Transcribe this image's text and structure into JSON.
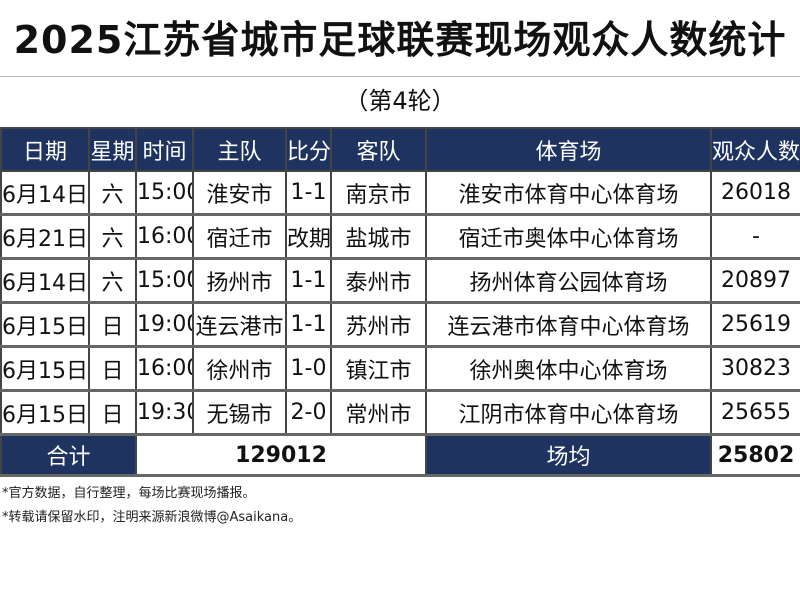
{
  "title": "2025江苏省城市足球联赛现场观众人数统计",
  "subtitle": "（第4轮）",
  "columns": [
    "日期",
    "星期",
    "时间",
    "主队",
    "比分",
    "客队",
    "体育场",
    "观众人数"
  ],
  "rows": [
    [
      "6月14日",
      "六",
      "15:00",
      "淮安市",
      "1-1",
      "南京市",
      "淮安市体育中心体育场",
      "26018"
    ],
    [
      "6月21日",
      "六",
      "16:00",
      "宿迁市",
      "改期",
      "盐城市",
      "宿迁市奥体中心体育场",
      "-"
    ],
    [
      "6月14日",
      "六",
      "15:00",
      "扬州市",
      "1-1",
      "泰州市",
      "扬州体育公园体育场",
      "20897"
    ],
    [
      "6月15日",
      "日",
      "19:00",
      "连云港市",
      "1-1",
      "苏州市",
      "连云港市体育中心体育场",
      "25619"
    ],
    [
      "6月15日",
      "日",
      "16:00",
      "徐州市",
      "1-0",
      "镇江市",
      "徐州奥体中心体育场",
      "30823"
    ],
    [
      "6月15日",
      "日",
      "19:30",
      "无锡市",
      "2-0",
      "常州市",
      "江阴市体育中心体育场",
      "25655"
    ]
  ],
  "total": {
    "label": "合计",
    "value": "129012",
    "avg_label": "场均",
    "avg_value": "25802"
  },
  "notes": [
    "*官方数据，自行整理，每场比赛现场播报。",
    "*转载请保留水印，注明来源新浪微博@Asaikana。"
  ],
  "colors": {
    "header": "#1f3361"
  }
}
